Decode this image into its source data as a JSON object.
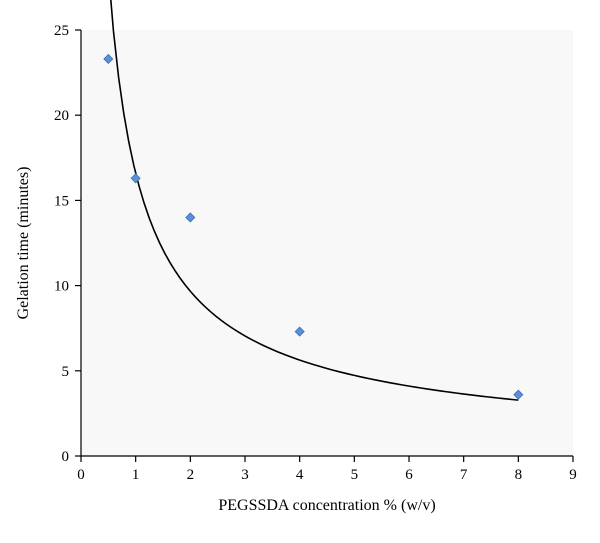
{
  "chart_data": {
    "type": "scatter",
    "title": "",
    "xlabel": "PEGSSDA concentration % (w/v)",
    "ylabel": "Gelation time (minutes)",
    "xlim": [
      0,
      9
    ],
    "ylim": [
      0,
      25
    ],
    "x_ticks": [
      0,
      1,
      2,
      3,
      4,
      5,
      6,
      7,
      8,
      9
    ],
    "y_ticks": [
      0,
      5,
      10,
      15,
      20,
      25
    ],
    "grid": false,
    "legend": "none",
    "series": [
      {
        "marker": "diamond",
        "color": "#5b8fd6",
        "x": [
          0.5,
          1,
          2,
          4,
          8
        ],
        "y": [
          23.3,
          16.3,
          14.0,
          7.3,
          3.6
        ]
      }
    ],
    "trendline": {
      "kind": "power",
      "color": "#000000",
      "x_range": [
        0.5,
        8
      ],
      "coefficient": 16.6,
      "exponent": -0.78
    }
  }
}
